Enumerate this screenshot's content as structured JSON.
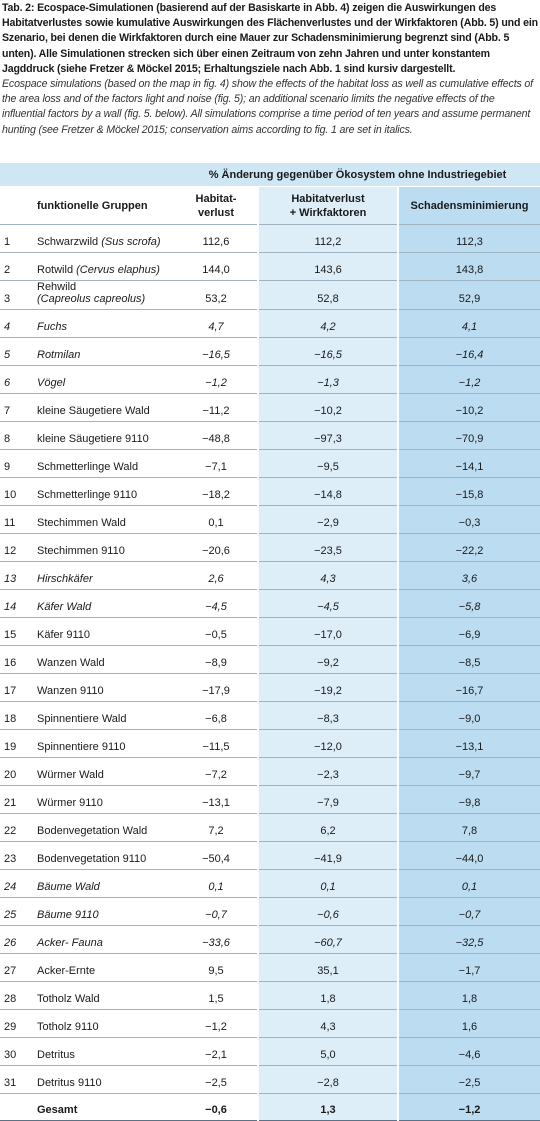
{
  "caption": {
    "de": "Tab. 2: Ecospace-Simulationen (basierend auf der Basiskarte in Abb. 4) zeigen die Auswirkungen des Habitatverlustes sowie kumulative Auswirkungen des Flächenverlustes und der Wirkfaktoren (Abb. 5) und ein Szenario, bei denen die Wirkfaktoren durch eine Mauer zur Schadensminimierung begrenzt sind (Abb. 5 unten). Alle Simulationen strecken sich über einen Zeitraum von zehn Jahren und unter konstantem Jagddruck (siehe Fretzer & Möckel 2015; Erhaltungsziele nach Abb. 1 sind kursiv dargestellt.",
    "en": "Ecospace simulations (based on the map in fig. 4) show the effects of the habitat loss as well as cumulative effects of the area loss and of the factors light and noise (fig. 5); an additional scenario limits the negative effects of the influential factors by a wall (fig. 5. below). All simulations comprise a time period of ten years and assume permanent hunting (see Fretzer & Möckel 2015; conservation aims according to fig. 1 are set in italics."
  },
  "table": {
    "group_header": "% Änderung gegenüber Ökosystem ohne Industriegebiet",
    "columns": [
      "funktionelle Gruppen",
      "Habitat-\nverlust",
      "Habitatverlust\n+ Wirkfaktoren",
      "Schadensminimierung"
    ],
    "rows": [
      {
        "no": "1",
        "name": "Schwarzwild",
        "latin": "(Sus scrofa)",
        "values": [
          "112,6",
          "112,2",
          "112,3"
        ]
      },
      {
        "no": "2",
        "name": "Rotwild",
        "latin": "(Cervus elaphus)",
        "values": [
          "144,0",
          "143,6",
          "143,8"
        ]
      },
      {
        "no": "3",
        "name": "Rehwild",
        "latin": "(Capreolus capreolus)",
        "values": [
          "53,2",
          "52,8",
          "52,9"
        ]
      },
      {
        "no": "4",
        "name": "Fuchs",
        "italic": true,
        "values": [
          "4,7",
          "4,2",
          "4,1"
        ]
      },
      {
        "no": "5",
        "name": "Rotmilan",
        "italic": true,
        "values": [
          "−16,5",
          "−16,5",
          "−16,4"
        ]
      },
      {
        "no": "6",
        "name": "Vögel",
        "italic": true,
        "values": [
          "−1,2",
          "−1,3",
          "−1,2"
        ]
      },
      {
        "no": "7",
        "name": "kleine Säugetiere Wald",
        "values": [
          "−11,2",
          "−10,2",
          "−10,2"
        ]
      },
      {
        "no": "8",
        "name": "kleine Säugetiere 9110",
        "values": [
          "−48,8",
          "−97,3",
          "−70,9"
        ]
      },
      {
        "no": "9",
        "name": "Schmetterlinge Wald",
        "values": [
          "−7,1",
          "−9,5",
          "−14,1"
        ]
      },
      {
        "no": "10",
        "name": "Schmetterlinge 9110",
        "values": [
          "−18,2",
          "−14,8",
          "−15,8"
        ]
      },
      {
        "no": "11",
        "name": "Stechimmen Wald",
        "values": [
          "0,1",
          "−2,9",
          "−0,3"
        ]
      },
      {
        "no": "12",
        "name": "Stechimmen 9110",
        "values": [
          "−20,6",
          "−23,5",
          "−22,2"
        ]
      },
      {
        "no": "13",
        "name": "Hirschkäfer",
        "italic": true,
        "values": [
          "2,6",
          "4,3",
          "3,6"
        ]
      },
      {
        "no": "14",
        "name": "Käfer Wald",
        "italic": true,
        "values": [
          "−4,5",
          "−4,5",
          "−5,8"
        ]
      },
      {
        "no": "15",
        "name": "Käfer 9110",
        "values": [
          "−0,5",
          "−17,0",
          "−6,9"
        ]
      },
      {
        "no": "16",
        "name": "Wanzen Wald",
        "values": [
          "−8,9",
          "−9,2",
          "−8,5"
        ]
      },
      {
        "no": "17",
        "name": "Wanzen 9110",
        "values": [
          "−17,9",
          "−19,2",
          "−16,7"
        ]
      },
      {
        "no": "18",
        "name": "Spinnentiere Wald",
        "values": [
          "−6,8",
          "−8,3",
          "−9,0"
        ]
      },
      {
        "no": "19",
        "name": "Spinnentiere 9110",
        "values": [
          "−11,5",
          "−12,0",
          "−13,1"
        ]
      },
      {
        "no": "20",
        "name": "Würmer Wald",
        "values": [
          "−7,2",
          "−2,3",
          "−9,7"
        ]
      },
      {
        "no": "21",
        "name": "Würmer 9110",
        "values": [
          "−13,1",
          "−7,9",
          "−9,8"
        ]
      },
      {
        "no": "22",
        "name": "Bodenvegetation Wald",
        "values": [
          "7,2",
          "6,2",
          "7,8"
        ]
      },
      {
        "no": "23",
        "name": "Bodenvegetation 9110",
        "values": [
          "−50,4",
          "−41,9",
          "−44,0"
        ]
      },
      {
        "no": "24",
        "name": "Bäume Wald",
        "italic": true,
        "values": [
          "0,1",
          "0,1",
          "0,1"
        ]
      },
      {
        "no": "25",
        "name": "Bäume 9110",
        "italic": true,
        "values": [
          "−0,7",
          "−0,6",
          "−0,7"
        ]
      },
      {
        "no": "26",
        "name": "Acker- Fauna",
        "italic": true,
        "values": [
          "−33,6",
          "−60,7",
          "−32,5"
        ]
      },
      {
        "no": "27",
        "name": "Acker-Ernte",
        "values": [
          "9,5",
          "35,1",
          "−1,7"
        ]
      },
      {
        "no": "28",
        "name": "Totholz Wald",
        "values": [
          "1,5",
          "1,8",
          "1,8"
        ]
      },
      {
        "no": "29",
        "name": "Totholz 9110",
        "values": [
          "−1,2",
          "4,3",
          "1,6"
        ]
      },
      {
        "no": "30",
        "name": "Detritus",
        "values": [
          "−2,1",
          "5,0",
          "−4,6"
        ]
      },
      {
        "no": "31",
        "name": "Detritus 9110",
        "values": [
          "−2,5",
          "−2,8",
          "−2,5"
        ]
      }
    ],
    "total": {
      "name": "Gesamt",
      "values": [
        "−0,6",
        "1,3",
        "−1,2"
      ]
    }
  }
}
